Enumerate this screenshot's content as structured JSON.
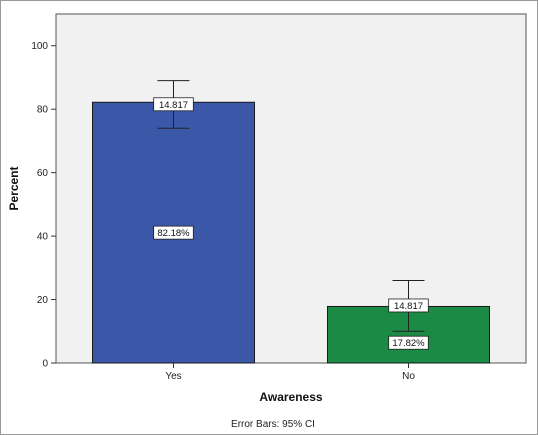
{
  "chart_data": {
    "type": "bar",
    "categories": [
      "Yes",
      "No"
    ],
    "values": [
      82.18,
      17.82
    ],
    "value_labels": [
      "82.18%",
      "17.82%"
    ],
    "error_bars": [
      {
        "low": 74,
        "high": 89,
        "label": "14.817"
      },
      {
        "low": 10,
        "high": 26,
        "label": "14.817"
      }
    ],
    "colors": [
      "#3b57a8",
      "#1a8a44"
    ],
    "plot_background": "#f1f1f1",
    "xlabel": "Awareness",
    "ylabel": "Percent",
    "ylim": [
      0,
      110
    ],
    "yticks": [
      0,
      20,
      40,
      60,
      80,
      100
    ],
    "grid": false,
    "footnote": "Error Bars: 95% CI"
  }
}
